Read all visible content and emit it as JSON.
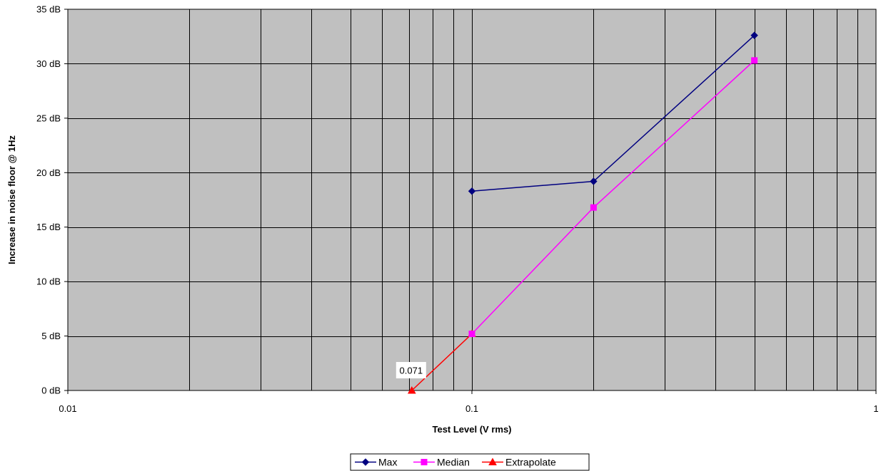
{
  "chart_data": {
    "type": "line",
    "title": "",
    "xlabel": "Test Level (V rms)",
    "ylabel": "Increase in noise floor @ 1Hz",
    "xscale": "log",
    "xlim": [
      0.01,
      1
    ],
    "ylim": [
      0,
      35
    ],
    "x_ticks": [
      0.01,
      0.1,
      1
    ],
    "x_tick_labels": [
      "0.01",
      "0.1",
      "1"
    ],
    "y_ticks": [
      0,
      5,
      10,
      15,
      20,
      25,
      30,
      35
    ],
    "y_tick_labels": [
      "0 dB",
      "5 dB",
      "10 dB",
      "15 dB",
      "20 dB",
      "25 dB",
      "30 dB",
      "35 dB"
    ],
    "grid": true,
    "plot_background": "#c0c0c0",
    "legend_position": "bottom",
    "series": [
      {
        "name": "Max",
        "color": "#000080",
        "marker": "diamond",
        "x": [
          0.1,
          0.2,
          0.5
        ],
        "y": [
          18.3,
          19.2,
          32.6
        ]
      },
      {
        "name": "Median",
        "color": "#ff00ff",
        "marker": "square",
        "x": [
          0.1,
          0.2,
          0.5
        ],
        "y": [
          5.2,
          16.8,
          30.3
        ]
      },
      {
        "name": "Extrapolate",
        "color": "#ff0000",
        "marker": "triangle",
        "x": [
          0.071,
          0.1
        ],
        "y": [
          0,
          5.2
        ]
      }
    ],
    "annotations": [
      {
        "text": "0.071",
        "x": 0.071,
        "y": 0
      }
    ]
  }
}
